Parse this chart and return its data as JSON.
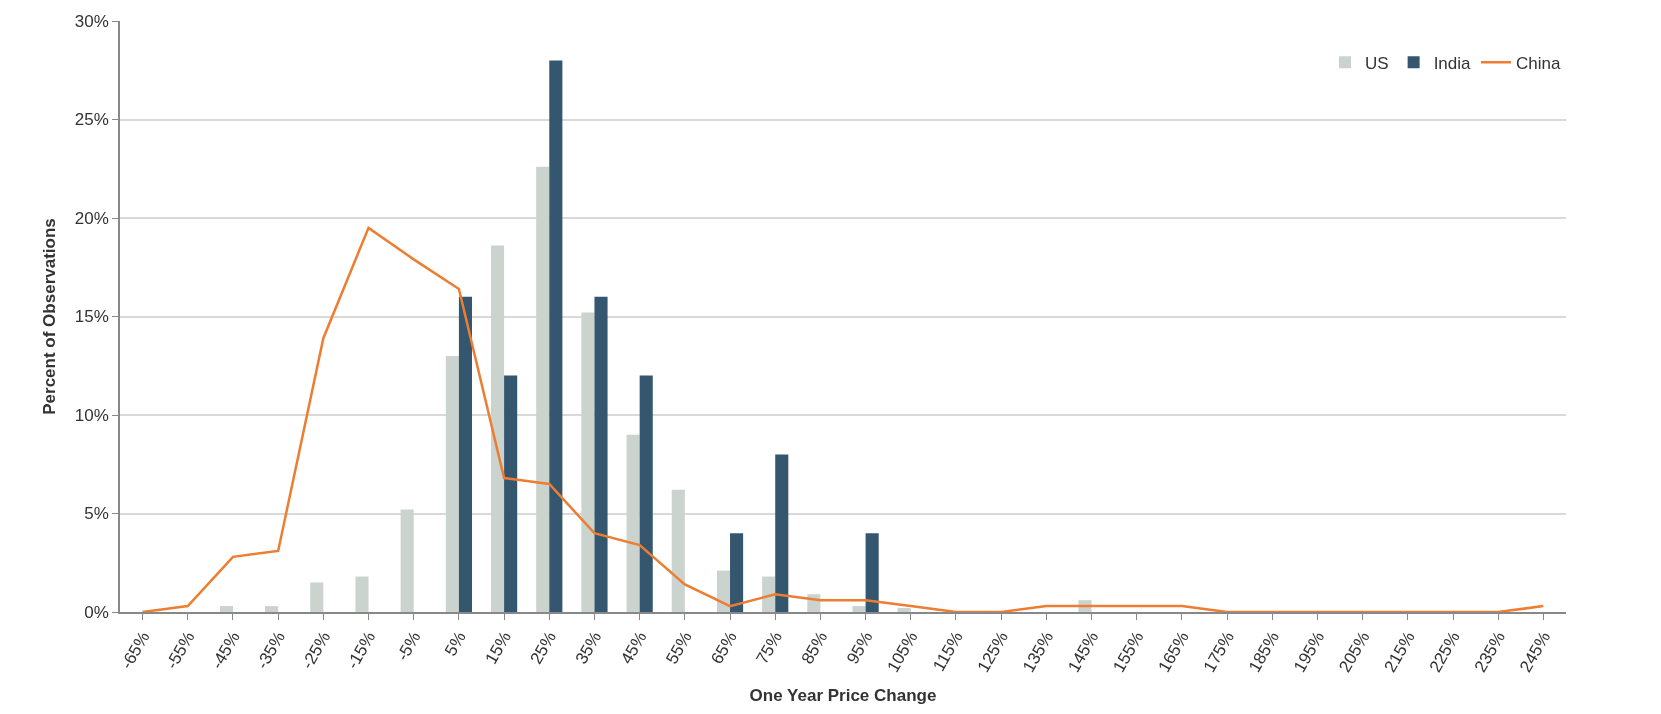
{
  "chart_data": {
    "type": "bar",
    "xlabel": "One Year Price Change",
    "ylabel": "Percent of Observations",
    "categories": [
      "-65%",
      "-55%",
      "-45%",
      "-35%",
      "-25%",
      "-15%",
      "-5%",
      "5%",
      "15%",
      "25%",
      "35%",
      "45%",
      "55%",
      "65%",
      "75%",
      "85%",
      "95%",
      "105%",
      "115%",
      "125%",
      "135%",
      "145%",
      "155%",
      "165%",
      "175%",
      "185%",
      "195%",
      "205%",
      "215%",
      "225%",
      "235%",
      "245%"
    ],
    "series": [
      {
        "name": "US",
        "color": "#cbd3cf",
        "values": [
          0,
          0,
          0.3,
          0.3,
          1.5,
          1.8,
          5.2,
          13.0,
          18.6,
          22.6,
          15.2,
          9.0,
          6.2,
          2.1,
          1.8,
          0.9,
          0.3,
          0.2,
          0,
          0,
          0,
          0.6,
          0,
          0,
          0,
          0,
          0,
          0,
          0,
          0,
          0,
          0
        ]
      },
      {
        "name": "India",
        "color": "#34566f",
        "values": [
          0,
          0,
          0,
          0,
          0,
          0,
          0,
          16,
          12,
          28,
          16,
          12,
          0,
          4,
          8,
          0,
          4,
          0,
          0,
          0,
          0,
          0,
          0,
          0,
          0,
          0,
          0,
          0,
          0,
          0,
          0,
          0
        ]
      },
      {
        "name": "China",
        "type": "line",
        "color": "#ed7d31",
        "values": [
          0,
          0.3,
          2.8,
          3.1,
          13.9,
          19.5,
          17.9,
          16.4,
          6.8,
          6.5,
          4.0,
          3.4,
          1.4,
          0.3,
          0.9,
          0.6,
          0.6,
          0.3,
          0,
          0,
          0.3,
          0.3,
          0.3,
          0.3,
          0,
          0,
          0,
          0,
          0,
          0,
          0,
          0.3
        ]
      }
    ],
    "ylim": [
      0,
      30
    ],
    "yticks": [
      {
        "value": 0,
        "label": "0%"
      },
      {
        "value": 5,
        "label": "5%"
      },
      {
        "value": 10,
        "label": "10%"
      },
      {
        "value": 15,
        "label": "15%"
      },
      {
        "value": 20,
        "label": "20%"
      },
      {
        "value": 25,
        "label": "25%"
      },
      {
        "value": 30,
        "label": "30%"
      }
    ],
    "grid": "y",
    "legend": "top right",
    "marker": "none",
    "line_style": "solid"
  }
}
